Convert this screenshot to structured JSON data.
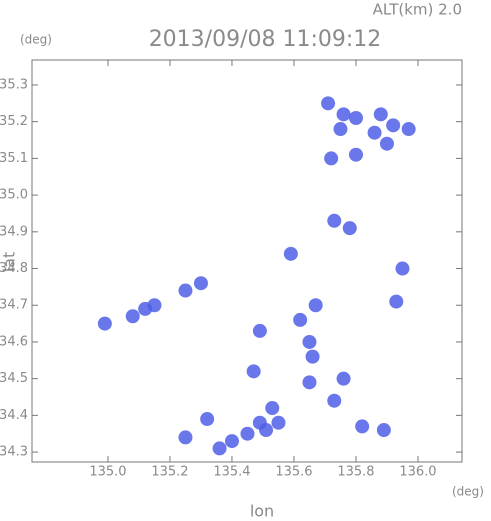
{
  "chart_data": {
    "type": "scatter",
    "title": "2013/09/08 11:09:12",
    "subtitle": "ALT(km) 2.0",
    "y_unit": "(deg)",
    "x_unit": "(deg)",
    "xlabel": "lon",
    "ylabel": "lat",
    "xlim": [
      134.755,
      136.142
    ],
    "ylim": [
      34.273,
      35.368
    ],
    "xticks": [
      {
        "value": 135,
        "label": "135.0"
      },
      135.2,
      135.4,
      135.6,
      135.8,
      {
        "value": 136,
        "label": "136.0"
      }
    ],
    "yticks": [
      34.3,
      34.4,
      34.5,
      34.6,
      34.7,
      34.8,
      34.9,
      {
        "value": 35,
        "label": "35.0"
      },
      35.1,
      35.2,
      35.3
    ],
    "color": "#4f5fe8",
    "x": [
      135.71,
      135.76,
      135.8,
      135.88,
      135.92,
      135.97,
      135.86,
      135.75,
      135.9,
      135.72,
      135.8,
      135.73,
      135.78,
      135.95,
      135.93,
      135.59,
      135.67,
      135.12,
      135.15,
      135.08,
      135.25,
      135.3,
      134.99,
      135.62,
      135.65,
      135.66,
      135.65,
      135.49,
      135.47,
      135.76,
      135.73,
      135.53,
      135.49,
      135.45,
      135.4,
      135.36,
      135.51,
      135.55,
      135.32,
      135.25,
      135.89,
      135.82
    ],
    "values": [
      35.25,
      35.22,
      35.21,
      35.22,
      35.19,
      35.18,
      35.17,
      35.18,
      35.14,
      35.1,
      35.11,
      34.93,
      34.91,
      34.8,
      34.71,
      34.84,
      34.7,
      34.69,
      34.7,
      34.67,
      34.74,
      34.76,
      34.65,
      34.66,
      34.6,
      34.56,
      34.49,
      34.63,
      34.52,
      34.5,
      34.44,
      34.42,
      34.38,
      34.35,
      34.33,
      34.31,
      34.36,
      34.38,
      34.39,
      34.34,
      34.36,
      34.37
    ]
  }
}
